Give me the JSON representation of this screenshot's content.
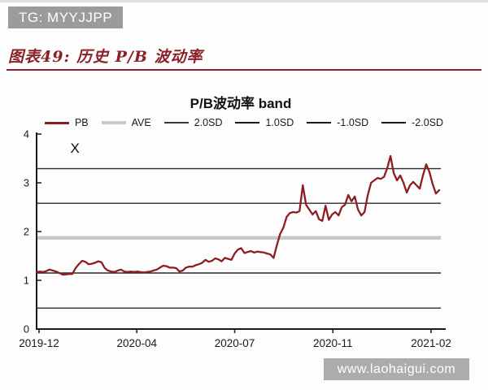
{
  "watermarks": {
    "top": "TG: MYYJJPP",
    "bottom": "www.laohaigui.com"
  },
  "caption": "图表49: 历史 P/B 波动率",
  "colors": {
    "pb_line": "#8e1c21",
    "caption_red": "#8b2027",
    "rule_red": "#8b2027",
    "top_box_bg": "#9b9b9b",
    "bottom_box_bg": "#acacac",
    "ave_line": "#c9c9c9",
    "sd_line": "#2b2b2b",
    "axis": "#1a1a1a",
    "tick_text": "#1a1a1a"
  },
  "chart_data": {
    "type": "line",
    "title": "P/B波动率 band",
    "legend_position": "top",
    "grid": false,
    "legend": [
      {
        "label": "PB",
        "color": "#8e1c21",
        "thickness": 3
      },
      {
        "label": "AVE",
        "color": "#c9c9c9",
        "thickness": 4
      },
      {
        "label": "2.0SD",
        "color": "#3a3a3a",
        "thickness": 2
      },
      {
        "label": "1.0SD",
        "color": "#1a1a1a",
        "thickness": 2
      },
      {
        "label": "-1.0SD",
        "color": "#1a1a1a",
        "thickness": 2
      },
      {
        "label": "-2.0SD",
        "color": "#1a1a1a",
        "thickness": 2
      }
    ],
    "ylim": [
      0,
      4
    ],
    "y_ticks": [
      0,
      1,
      2,
      3,
      4
    ],
    "x_ticks": [
      {
        "label": "2019-12",
        "pos": 0.006
      },
      {
        "label": "2020-04",
        "pos": 0.248
      },
      {
        "label": "2020-07",
        "pos": 0.49
      },
      {
        "label": "2020-11",
        "pos": 0.733
      },
      {
        "label": "2021-02",
        "pos": 0.976
      }
    ],
    "reference_lines": [
      {
        "label": "2.0SD",
        "value": 3.29
      },
      {
        "label": "1.0SD",
        "value": 2.58
      },
      {
        "label": "AVE",
        "value": 1.87
      },
      {
        "label": "-1.0SD",
        "value": 1.15
      },
      {
        "label": "-2.0SD",
        "value": 0.43
      }
    ],
    "annotation": {
      "text": "X",
      "x_pos": 0.095,
      "value": 3.72
    },
    "series": [
      {
        "name": "PB",
        "values": [
          1.17,
          1.18,
          1.17,
          1.19,
          1.22,
          1.2,
          1.18,
          1.15,
          1.12,
          1.12,
          1.13,
          1.13,
          1.25,
          1.33,
          1.4,
          1.38,
          1.33,
          1.34,
          1.36,
          1.39,
          1.37,
          1.25,
          1.2,
          1.18,
          1.17,
          1.2,
          1.22,
          1.18,
          1.17,
          1.18,
          1.17,
          1.18,
          1.17,
          1.16,
          1.17,
          1.18,
          1.2,
          1.22,
          1.26,
          1.3,
          1.29,
          1.26,
          1.26,
          1.25,
          1.18,
          1.2,
          1.26,
          1.28,
          1.28,
          1.31,
          1.33,
          1.36,
          1.42,
          1.38,
          1.4,
          1.45,
          1.43,
          1.39,
          1.46,
          1.44,
          1.42,
          1.55,
          1.63,
          1.66,
          1.56,
          1.58,
          1.6,
          1.57,
          1.59,
          1.58,
          1.57,
          1.55,
          1.53,
          1.46,
          1.72,
          1.95,
          2.08,
          2.3,
          2.38,
          2.4,
          2.39,
          2.42,
          2.95,
          2.55,
          2.45,
          2.35,
          2.42,
          2.25,
          2.22,
          2.53,
          2.24,
          2.35,
          2.4,
          2.33,
          2.5,
          2.55,
          2.75,
          2.62,
          2.72,
          2.45,
          2.33,
          2.4,
          2.75,
          3.0,
          3.05,
          3.1,
          3.08,
          3.12,
          3.3,
          3.55,
          3.2,
          3.05,
          3.15,
          3.0,
          2.8,
          2.95,
          3.02,
          2.95,
          2.88,
          3.15,
          3.38,
          3.22,
          2.97,
          2.78,
          2.85
        ]
      }
    ]
  }
}
